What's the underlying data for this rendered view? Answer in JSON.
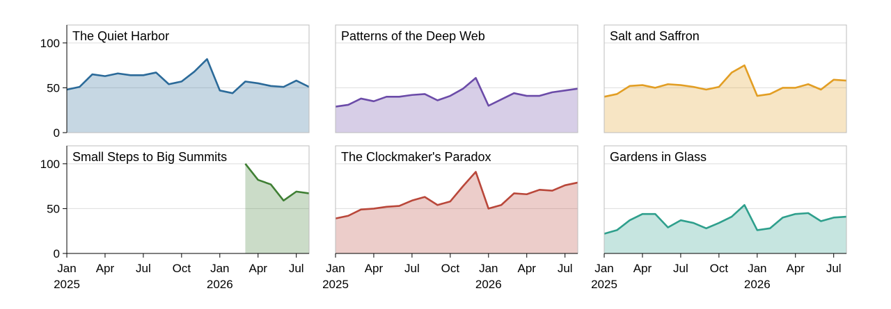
{
  "chart_data": {
    "type": "area",
    "layout": "small-multiples 2x3, shared axes",
    "x_ticks": [
      {
        "month": "Jan",
        "year": "2025",
        "t": 0
      },
      {
        "month": "Apr",
        "year": "",
        "t": 3
      },
      {
        "month": "Jul",
        "year": "",
        "t": 6
      },
      {
        "month": "Oct",
        "year": "",
        "t": 9
      },
      {
        "month": "Jan",
        "year": "2026",
        "t": 12
      },
      {
        "month": "Apr",
        "year": "",
        "t": 15
      },
      {
        "month": "Jul",
        "year": "",
        "t": 18
      }
    ],
    "x_range": [
      "2025-01",
      "2026-08"
    ],
    "x_months": [
      "2025-01",
      "2025-02",
      "2025-03",
      "2025-04",
      "2025-05",
      "2025-06",
      "2025-07",
      "2025-08",
      "2025-09",
      "2025-10",
      "2025-11",
      "2025-12",
      "2026-01",
      "2026-02",
      "2026-03",
      "2026-04",
      "2026-05",
      "2026-06",
      "2026-07",
      "2026-08"
    ],
    "y_ticks": [
      0,
      50,
      100
    ],
    "ylim": [
      0,
      120
    ],
    "grid": "horizontal",
    "panels": [
      {
        "title": "The Quiet Harbor",
        "color": "#2b6a99",
        "values": [
          48,
          51,
          65,
          63,
          66,
          64,
          64,
          67,
          54,
          57,
          68,
          82,
          47,
          44,
          57,
          55,
          52,
          51,
          58,
          51
        ]
      },
      {
        "title": "Patterns of the Deep Web",
        "color": "#6b4ba8",
        "values": [
          29,
          31,
          38,
          35,
          40,
          40,
          42,
          43,
          36,
          41,
          49,
          61,
          30,
          37,
          44,
          41,
          41,
          45,
          47,
          49
        ]
      },
      {
        "title": "Salt and Saffron",
        "color": "#e29e24",
        "values": [
          40,
          43,
          52,
          53,
          50,
          54,
          53,
          51,
          48,
          51,
          67,
          75,
          41,
          43,
          50,
          50,
          54,
          48,
          59,
          58
        ]
      },
      {
        "title": "Small Steps to Big Summits",
        "color": "#3f7f34",
        "values": [
          null,
          null,
          null,
          null,
          null,
          null,
          null,
          null,
          null,
          null,
          null,
          null,
          null,
          null,
          100,
          82,
          77,
          59,
          69,
          67
        ]
      },
      {
        "title": "The Clockmaker's Paradox",
        "color": "#b9473a",
        "values": [
          39,
          42,
          49,
          50,
          52,
          53,
          59,
          63,
          54,
          58,
          75,
          91,
          50,
          54,
          67,
          66,
          71,
          70,
          76,
          79
        ]
      },
      {
        "title": "Gardens in Glass",
        "color": "#2e9f8c",
        "values": [
          22,
          26,
          37,
          44,
          44,
          29,
          37,
          34,
          28,
          34,
          41,
          54,
          26,
          28,
          40,
          44,
          45,
          36,
          40,
          41
        ]
      }
    ]
  }
}
